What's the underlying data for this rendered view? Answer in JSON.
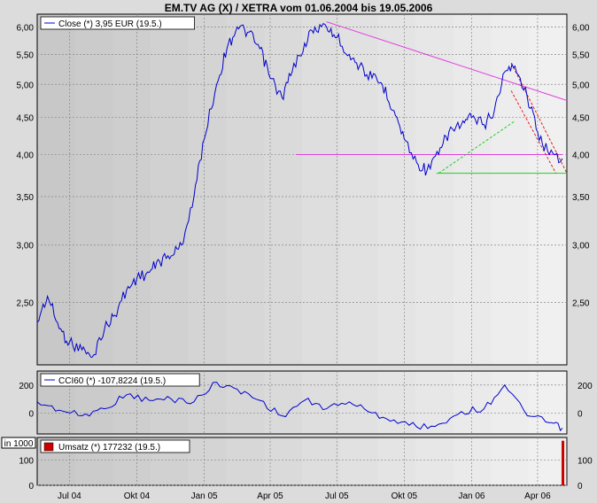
{
  "title": "EM.TV AG (X) / XETRA vom 01.06.2004 bis 19.05.2006",
  "colors": {
    "price": "#0000cc",
    "cci": "#0000cc",
    "volume": "#cc0000",
    "trendline_magenta": "#e040e0",
    "support_green": "#22cc22",
    "channel_red": "#dd2222",
    "background_light": "#f0f0f0",
    "background_dark": "#c8c8c8"
  },
  "chart_data": [
    {
      "type": "line",
      "panel": "price",
      "legend": "Close (*) 3,95 EUR (19.5.)",
      "x_ticks": [
        "Jul 04",
        "Okt 04",
        "Jan 05",
        "Apr 05",
        "Jul 05",
        "Okt 05",
        "Jan 06",
        "Apr 06"
      ],
      "y_ticks": [
        "6,00",
        "5,50",
        "5,00",
        "4,50",
        "4,00",
        "3,50",
        "3,00",
        "2,50"
      ],
      "yscale": "log",
      "ylim": [
        2.05,
        6.25
      ],
      "series": [
        {
          "x": [
            "2004-06-01",
            "2004-06-15",
            "2004-07-01",
            "2004-07-15",
            "2004-08-01",
            "2004-08-15",
            "2004-09-01",
            "2004-09-15",
            "2004-10-01",
            "2004-10-15",
            "2004-11-01",
            "2004-11-15",
            "2004-12-01",
            "2004-12-15",
            "2005-01-01",
            "2005-01-15",
            "2005-02-01",
            "2005-02-15",
            "2005-03-01",
            "2005-03-15",
            "2005-04-01",
            "2005-04-15",
            "2005-05-01",
            "2005-05-15",
            "2005-06-01",
            "2005-06-15",
            "2005-07-01",
            "2005-07-15",
            "2005-08-01",
            "2005-08-15",
            "2005-09-01",
            "2005-09-15",
            "2005-10-01",
            "2005-10-15",
            "2005-11-01",
            "2005-11-15",
            "2005-12-01",
            "2005-12-15",
            "2006-01-01",
            "2006-01-15",
            "2006-02-01",
            "2006-02-15",
            "2006-03-01",
            "2006-03-15",
            "2006-04-01",
            "2006-04-15",
            "2006-05-01",
            "2006-05-19"
          ],
          "y": [
            2.35,
            2.55,
            2.3,
            2.2,
            2.15,
            2.1,
            2.3,
            2.4,
            2.6,
            2.7,
            2.75,
            2.85,
            2.9,
            3.0,
            3.5,
            4.2,
            5.0,
            5.6,
            6.0,
            5.9,
            5.6,
            5.1,
            4.8,
            5.2,
            5.7,
            6.0,
            6.0,
            5.8,
            5.5,
            5.3,
            5.1,
            5.0,
            4.6,
            4.2,
            3.9,
            3.8,
            4.0,
            4.3,
            4.4,
            4.5,
            4.4,
            4.6,
            5.2,
            5.3,
            4.8,
            4.3,
            4.0,
            3.95
          ]
        }
      ],
      "trendlines": [
        {
          "name": "resistance",
          "color": "magenta",
          "x": [
            "2005-07-01",
            "2006-05-25"
          ],
          "y": [
            6.1,
            4.75
          ]
        },
        {
          "name": "support-horizontal",
          "color": "magenta",
          "x": [
            "2005-05-20",
            "2006-05-19"
          ],
          "y": [
            4.0,
            4.0
          ]
        },
        {
          "name": "support-green",
          "color": "green",
          "x": [
            "2005-11-28",
            "2006-05-25"
          ],
          "y": [
            3.77,
            3.77
          ]
        },
        {
          "name": "rising-dashed",
          "color": "green",
          "x": [
            "2005-12-01",
            "2006-03-15"
          ],
          "y": [
            3.77,
            4.45
          ]
        },
        {
          "name": "channel-upper",
          "color": "red",
          "x": [
            "2006-03-10",
            "2006-05-25"
          ],
          "y": [
            5.35,
            3.77
          ]
        },
        {
          "name": "channel-lower",
          "color": "red",
          "x": [
            "2006-03-10",
            "2006-05-10"
          ],
          "y": [
            4.9,
            3.77
          ]
        }
      ]
    },
    {
      "type": "line",
      "panel": "cci",
      "legend": "CCI60 (*) -107,8224 (19.5.)",
      "y_ticks": [
        "200",
        "0"
      ],
      "ylim": [
        -150,
        300
      ],
      "series": [
        {
          "x": [
            "2004-06-01",
            "2004-07-01",
            "2004-08-01",
            "2004-09-01",
            "2004-10-01",
            "2004-11-01",
            "2004-12-01",
            "2005-01-01",
            "2005-02-01",
            "2005-03-01",
            "2005-04-01",
            "2005-05-01",
            "2005-06-01",
            "2005-07-01",
            "2005-08-01",
            "2005-09-01",
            "2005-10-01",
            "2005-11-01",
            "2005-12-01",
            "2006-01-01",
            "2006-02-01",
            "2006-03-01",
            "2006-04-01",
            "2006-05-01",
            "2006-05-19"
          ],
          "y": [
            80,
            20,
            -20,
            30,
            130,
            90,
            100,
            80,
            220,
            170,
            90,
            -20,
            90,
            30,
            80,
            0,
            -50,
            -100,
            -80,
            10,
            30,
            200,
            -20,
            -70,
            -108
          ]
        }
      ]
    },
    {
      "type": "bar",
      "panel": "volume",
      "legend": "Umsatz (*) 177232 (19.5.)",
      "unit_label": "in 1000",
      "y_ticks": [
        "100",
        "0"
      ],
      "ylim": [
        0,
        190
      ],
      "bars": [
        {
          "x": "2006-05-19",
          "value": 177
        }
      ]
    }
  ]
}
